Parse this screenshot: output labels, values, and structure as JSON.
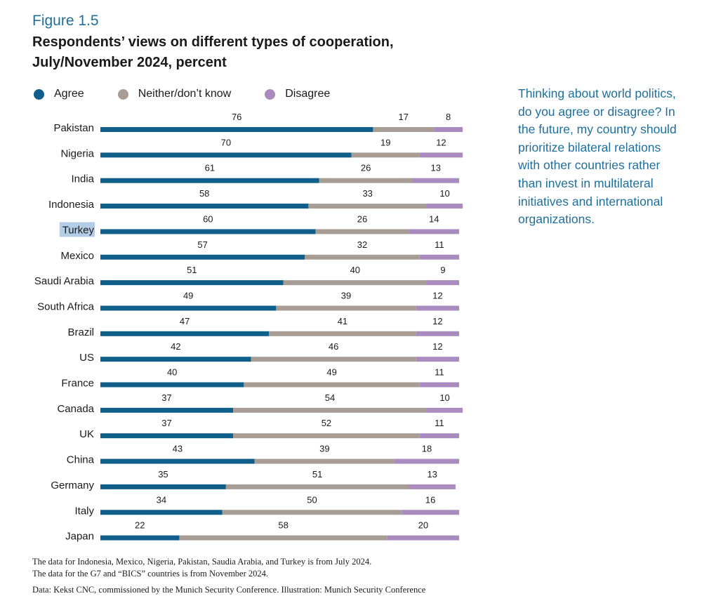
{
  "figure_label": "Figure 1.5",
  "title_line1": "Respondents’ views on different types of cooperation,",
  "title_line2": "July/November 2024, percent",
  "colors": {
    "agree": "#0f5f8a",
    "neither": "#a89d95",
    "disagree": "#a98bbf",
    "highlight": "#b3cde6"
  },
  "question": "Thinking about world politics, do you agree or disagree? In the future, my country should prioritize bilateral relations with other countries rather than invest in multilateral initiatives and international organizations.",
  "notes": {
    "line1": "The data for Indonesia, Mexico, Nigeria, Pakistan, Saudia Arabia, and Turkey is from July 2024.",
    "line2": "The data for the G7 and “BICS” countries is from November 2024.",
    "source": "Data: Kekst CNC, commissioned by the Munich Security Conference. Illustration: Munich Security Conference"
  },
  "chart_data": {
    "type": "bar",
    "orientation": "horizontal",
    "stacked": true,
    "title": "Respondents’ views on different types of cooperation, July/November 2024, percent",
    "categories": [
      "Pakistan",
      "Nigeria",
      "India",
      "Indonesia",
      "Turkey",
      "Mexico",
      "Saudi Arabia",
      "South Africa",
      "Brazil",
      "US",
      "France",
      "Canada",
      "UK",
      "China",
      "Germany",
      "Italy",
      "Japan"
    ],
    "highlighted_category": "Turkey",
    "series": [
      {
        "name": "Agree",
        "key": "agree",
        "values": [
          76,
          70,
          61,
          58,
          60,
          57,
          51,
          49,
          47,
          42,
          40,
          37,
          37,
          43,
          35,
          34,
          22
        ]
      },
      {
        "name": "Neither/don’t know",
        "key": "neither",
        "values": [
          17,
          19,
          26,
          33,
          26,
          32,
          40,
          39,
          41,
          46,
          49,
          54,
          52,
          39,
          51,
          50,
          58
        ]
      },
      {
        "name": "Disagree",
        "key": "disagree",
        "values": [
          8,
          12,
          13,
          10,
          14,
          11,
          9,
          12,
          12,
          12,
          11,
          10,
          11,
          18,
          13,
          16,
          20
        ]
      }
    ],
    "xlim": [
      0,
      100
    ],
    "legend": "top",
    "grid": false,
    "data_labels": true
  }
}
